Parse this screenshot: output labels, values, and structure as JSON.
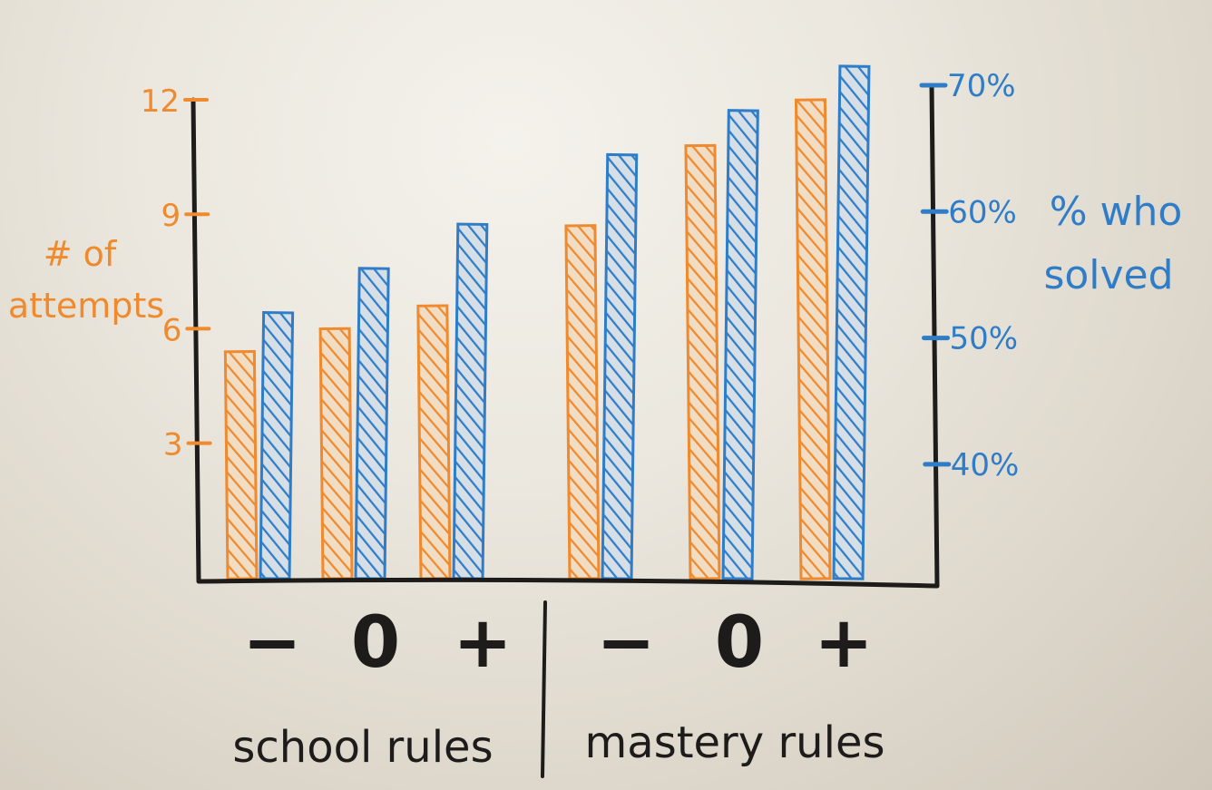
{
  "colors": {
    "attempts": "#ef8a2e",
    "solved": "#2f7dc8",
    "ink": "#1d1c1a",
    "board": "#ebe7de"
  },
  "chart_data": {
    "type": "bar",
    "groups": [
      {
        "label": "school rules",
        "categories": [
          "−",
          "0",
          "+"
        ]
      },
      {
        "label": "mastery rules",
        "categories": [
          "−",
          "0",
          "+"
        ]
      }
    ],
    "series": [
      {
        "axis": "left",
        "values": [
          5.4,
          6.0,
          6.6,
          8.7,
          10.8,
          12.0
        ]
      },
      {
        "axis": "right",
        "values": [
          52,
          55.5,
          59,
          64.5,
          68,
          71.5
        ]
      }
    ],
    "left_axis": {
      "label_line1": "# of",
      "label_line2": "attempts",
      "ticks": [
        3,
        6,
        9,
        12
      ],
      "tick_labels": [
        "3",
        "6",
        "9",
        "12"
      ],
      "range": [
        -0.6,
        12
      ]
    },
    "right_axis": {
      "label_line1": "% who",
      "label_line2": "solved",
      "ticks": [
        40,
        50,
        60,
        70
      ],
      "tick_labels": [
        "40%",
        "50%",
        "60%",
        "70%"
      ],
      "range": [
        30.8,
        70
      ]
    },
    "grid": false,
    "legend": "none"
  }
}
